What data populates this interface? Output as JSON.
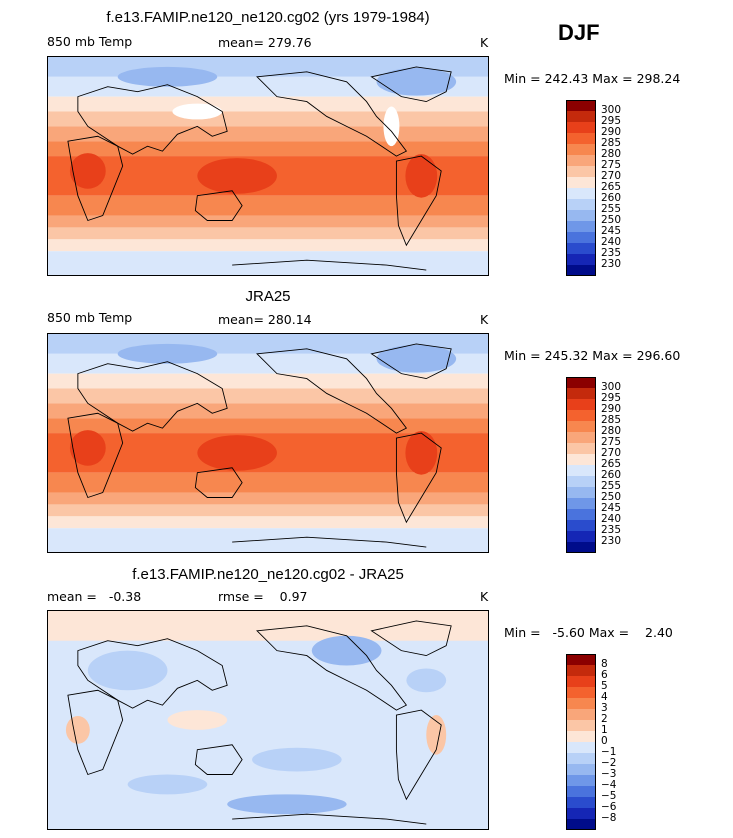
{
  "season": "DJF",
  "panels": [
    {
      "title": "f.e13.FAMIP.ne120_ne120.cg02 (yrs 1979-1984)",
      "left_label": "850 mb Temp",
      "mean_label": "mean= 279.76",
      "unit": "K",
      "minmax": "Min = 242.43 Max = 298.24",
      "kind": "model"
    },
    {
      "title": "JRA25",
      "left_label": "850 mb Temp",
      "mean_label": "mean= 280.14",
      "unit": "K",
      "minmax": "Min = 245.32 Max = 296.60",
      "kind": "obs"
    },
    {
      "title": "f.e13.FAMIP.ne120_ne120.cg02 - JRA25",
      "left_label": "mean =   -0.38",
      "mean_label": "rmse =    0.97",
      "unit": "K",
      "minmax": "Min =   -5.60 Max =    2.40",
      "kind": "diff"
    }
  ],
  "colorbar_abs": {
    "labels": [
      "300",
      "295",
      "290",
      "285",
      "280",
      "275",
      "270",
      "265",
      "260",
      "255",
      "250",
      "245",
      "240",
      "235",
      "230"
    ],
    "colors": [
      "#8b0000",
      "#c42a0c",
      "#e8401a",
      "#f4622e",
      "#f7874f",
      "#f9a67a",
      "#fbc6a6",
      "#fde6d7",
      "#d9e7fb",
      "#b8d1f7",
      "#97b8f0",
      "#6f97e8",
      "#4a73dd",
      "#2a4ccd",
      "#1526b5",
      "#000c8a"
    ]
  },
  "colorbar_diff": {
    "labels": [
      "8",
      "6",
      "5",
      "4",
      "3",
      "2",
      "1",
      "0",
      "−1",
      "−2",
      "−3",
      "−4",
      "−5",
      "−6",
      "−8"
    ],
    "colors": [
      "#8b0000",
      "#c42a0c",
      "#e8401a",
      "#f4622e",
      "#f7874f",
      "#f9a67a",
      "#fbc6a6",
      "#fde6d7",
      "#d9e7fb",
      "#b8d1f7",
      "#97b8f0",
      "#6f97e8",
      "#4a73dd",
      "#2a4ccd",
      "#1526b5",
      "#000c8a"
    ]
  }
}
